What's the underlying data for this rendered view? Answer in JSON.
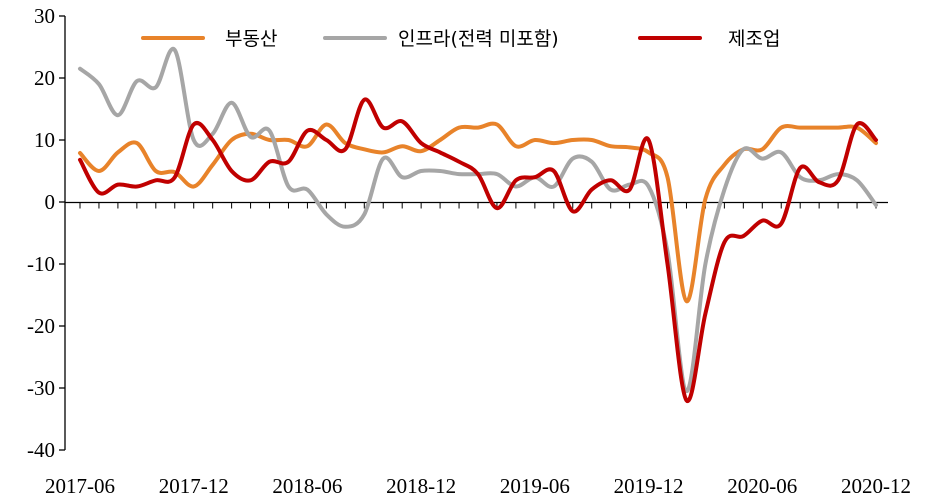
{
  "chart_data": {
    "type": "line",
    "title": "",
    "xlabel": "",
    "ylabel": "",
    "ylim": [
      -40,
      30
    ],
    "yticks": [
      "30",
      "20",
      "10",
      "0",
      "-10",
      "-20",
      "-30",
      "-40"
    ],
    "xticks": [
      "2017-06",
      "2017-12",
      "2018-06",
      "2018-12",
      "2019-06",
      "2019-12",
      "2020-06",
      "2020-12"
    ],
    "legend_position": "top",
    "grid": false,
    "x": [
      "2017-06",
      "2017-07",
      "2017-08",
      "2017-09",
      "2017-10",
      "2017-11",
      "2017-12",
      "2018-01",
      "2018-02",
      "2018-03",
      "2018-04",
      "2018-05",
      "2018-06",
      "2018-07",
      "2018-08",
      "2018-09",
      "2018-10",
      "2018-11",
      "2018-12",
      "2019-01",
      "2019-02",
      "2019-03",
      "2019-04",
      "2019-05",
      "2019-06",
      "2019-07",
      "2019-08",
      "2019-09",
      "2019-10",
      "2019-11",
      "2019-12",
      "2020-01",
      "2020-02",
      "2020-03",
      "2020-04",
      "2020-05",
      "2020-06",
      "2020-07",
      "2020-08",
      "2020-09",
      "2020-10",
      "2020-11",
      "2020-12"
    ],
    "series": [
      {
        "name": "부동산",
        "color": "#E8832A",
        "values": [
          7.9,
          5.0,
          8.0,
          9.5,
          5.0,
          4.8,
          2.5,
          6.0,
          10.0,
          11.0,
          10.0,
          10.0,
          9.0,
          12.5,
          9.5,
          8.5,
          8.0,
          9.0,
          8.2,
          10.0,
          12.0,
          12.0,
          12.5,
          9.0,
          10.0,
          9.5,
          10.0,
          10.0,
          9.0,
          8.8,
          8.0,
          4.0,
          -16.0,
          0.5,
          6.0,
          8.5,
          8.5,
          12.0,
          12.0,
          12.0,
          12.0,
          12.0,
          9.5
        ]
      },
      {
        "name": "인프라(전력 미포함)",
        "color": "#A6A6A6",
        "values": [
          21.5,
          19.0,
          14.0,
          19.5,
          18.5,
          24.5,
          10.0,
          11.0,
          16.0,
          10.5,
          11.5,
          2.5,
          2.0,
          -2.0,
          -4.0,
          -2.0,
          7.0,
          4.0,
          5.0,
          5.0,
          4.5,
          4.5,
          4.5,
          2.5,
          4.0,
          2.5,
          7.0,
          6.5,
          2.0,
          2.8,
          2.5,
          -8.0,
          -30.5,
          -10.0,
          2.0,
          8.5,
          7.0,
          8.0,
          4.0,
          3.5,
          4.5,
          3.5,
          -0.5
        ]
      },
      {
        "name": "제조업",
        "color": "#C00000",
        "values": [
          6.8,
          1.5,
          2.8,
          2.5,
          3.5,
          4.0,
          12.5,
          10.0,
          5.0,
          3.5,
          6.5,
          6.5,
          11.5,
          10.0,
          8.5,
          16.5,
          12.0,
          13.0,
          9.5,
          8.0,
          6.5,
          4.5,
          -1.0,
          3.5,
          4.0,
          5.0,
          -1.5,
          2.0,
          3.5,
          2.0,
          10.0,
          -10.0,
          -32.0,
          -18.0,
          -6.5,
          -5.5,
          -3.0,
          -3.5,
          5.5,
          3.2,
          3.5,
          12.5,
          10.0
        ]
      }
    ]
  }
}
